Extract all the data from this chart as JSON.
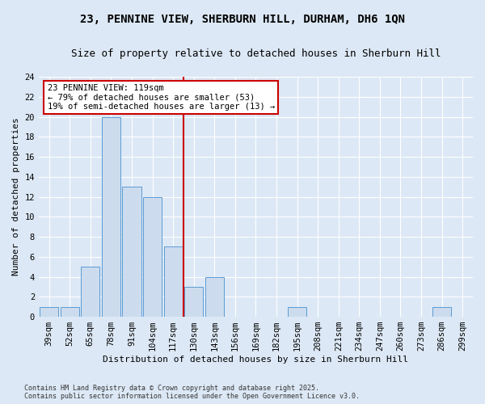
{
  "title1": "23, PENNINE VIEW, SHERBURN HILL, DURHAM, DH6 1QN",
  "title2": "Size of property relative to detached houses in Sherburn Hill",
  "xlabel": "Distribution of detached houses by size in Sherburn Hill",
  "ylabel": "Number of detached properties",
  "footnote1": "Contains HM Land Registry data © Crown copyright and database right 2025.",
  "footnote2": "Contains public sector information licensed under the Open Government Licence v3.0.",
  "bin_labels": [
    "39sqm",
    "52sqm",
    "65sqm",
    "78sqm",
    "91sqm",
    "104sqm",
    "117sqm",
    "130sqm",
    "143sqm",
    "156sqm",
    "169sqm",
    "182sqm",
    "195sqm",
    "208sqm",
    "221sqm",
    "234sqm",
    "247sqm",
    "260sqm",
    "273sqm",
    "286sqm",
    "299sqm"
  ],
  "bar_values": [
    1,
    1,
    5,
    20,
    13,
    12,
    7,
    3,
    4,
    0,
    0,
    0,
    1,
    0,
    0,
    0,
    0,
    0,
    0,
    1,
    0
  ],
  "bar_color": "#ccdcee",
  "bar_edge_color": "#5b9bd5",
  "vline_color": "#cc0000",
  "annotation_text": "23 PENNINE VIEW: 119sqm\n← 79% of detached houses are smaller (53)\n19% of semi-detached houses are larger (13) →",
  "annotation_box_color": "#cc0000",
  "ylim": [
    0,
    24
  ],
  "yticks": [
    0,
    2,
    4,
    6,
    8,
    10,
    12,
    14,
    16,
    18,
    20,
    22,
    24
  ],
  "bg_color": "#dce8f5",
  "plot_bg_color": "#dce8f5",
  "grid_color": "#ffffff",
  "title_fontsize": 10,
  "subtitle_fontsize": 9,
  "axis_fontsize": 8,
  "tick_fontsize": 7.5,
  "annot_fontsize": 7.5,
  "footnote_fontsize": 6
}
